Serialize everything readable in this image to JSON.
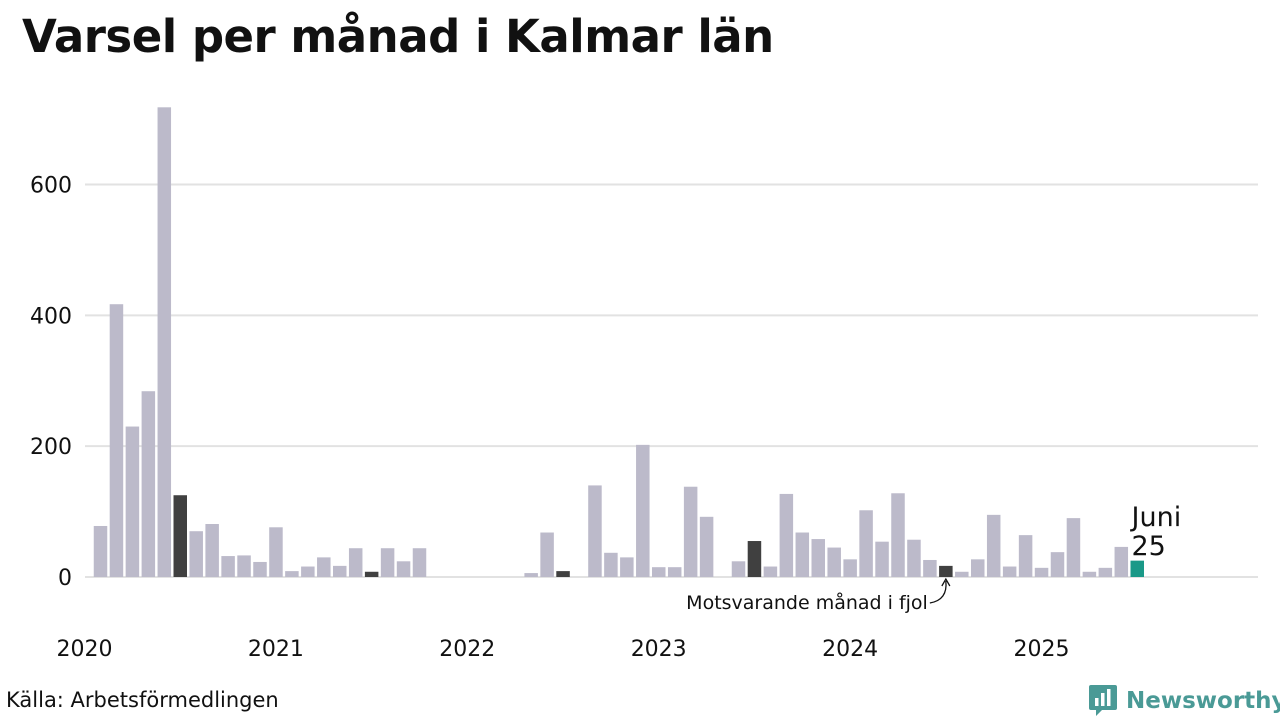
{
  "title": "Varsel per månad i Kalmar län",
  "source": "Källa: Arbetsförmedlingen",
  "brand": {
    "name": "Newsworthy",
    "icon": "newsworthy-logo-icon"
  },
  "colors": {
    "default": "#bcbaca",
    "highlight": "#404040",
    "current": "#1a9988",
    "grid": "#e2e2e2",
    "brand": "#4a9a96"
  },
  "chart_data": {
    "type": "bar",
    "title": "Varsel per månad i Kalmar län",
    "xlabel": "",
    "ylabel": "",
    "ylim": [
      0,
      720
    ],
    "yticks": [
      0,
      200,
      400,
      600
    ],
    "grid": true,
    "x_tick_labels": [
      "2020",
      "2021",
      "2022",
      "2023",
      "2024",
      "2025"
    ],
    "categories": [
      "2020-01",
      "2020-02",
      "2020-03",
      "2020-04",
      "2020-05",
      "2020-06",
      "2020-07",
      "2020-08",
      "2020-09",
      "2020-10",
      "2020-11",
      "2020-12",
      "2021-01",
      "2021-02",
      "2021-03",
      "2021-04",
      "2021-05",
      "2021-06",
      "2021-07",
      "2021-08",
      "2021-09",
      "2021-10",
      "2021-11",
      "2021-12",
      "2022-01",
      "2022-02",
      "2022-03",
      "2022-04",
      "2022-05",
      "2022-06",
      "2022-07",
      "2022-08",
      "2022-09",
      "2022-10",
      "2022-11",
      "2022-12",
      "2023-01",
      "2023-02",
      "2023-03",
      "2023-04",
      "2023-05",
      "2023-06",
      "2023-07",
      "2023-08",
      "2023-09",
      "2023-10",
      "2023-11",
      "2023-12",
      "2024-01",
      "2024-02",
      "2024-03",
      "2024-04",
      "2024-05",
      "2024-06",
      "2024-07",
      "2024-08",
      "2024-09",
      "2024-10",
      "2024-11",
      "2024-12",
      "2025-01",
      "2025-02",
      "2025-03",
      "2025-04",
      "2025-05",
      "2025-06"
    ],
    "values": [
      78,
      417,
      230,
      284,
      718,
      125,
      70,
      81,
      32,
      33,
      23,
      76,
      9,
      16,
      30,
      17,
      44,
      8,
      44,
      24,
      44,
      0,
      0,
      0,
      0,
      0,
      0,
      6,
      68,
      9,
      0,
      140,
      37,
      30,
      202,
      15,
      15,
      138,
      92,
      0,
      24,
      55,
      16,
      127,
      68,
      58,
      45,
      27,
      102,
      54,
      128,
      57,
      26,
      17,
      8,
      27,
      95,
      16,
      64,
      14,
      38,
      90,
      8,
      14,
      46,
      25
    ],
    "highlight_months": [
      "2020-06",
      "2021-06",
      "2022-06",
      "2023-06",
      "2024-06"
    ],
    "current_month": "2025-06",
    "current_label": [
      "Juni",
      "25"
    ],
    "annotation": {
      "text": "Motsvarande månad i fjol",
      "target": "2024-06"
    }
  }
}
